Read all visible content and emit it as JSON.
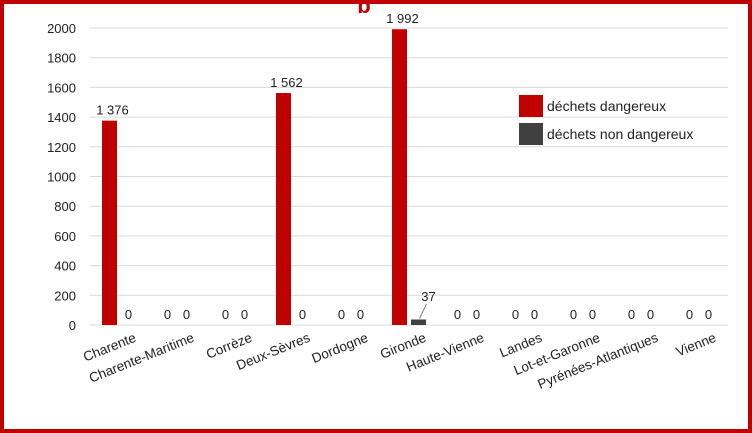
{
  "title_fragment": "p",
  "chart_data": {
    "type": "bar",
    "categories": [
      "Charente",
      "Charente-Maritime",
      "Corrèze",
      "Deux-Sèvres",
      "Dordogne",
      "Gironde",
      "Haute-Vienne",
      "Landes",
      "Lot-et-Garonne",
      "Pyrénées-Atlantiques",
      "Vienne"
    ],
    "series": [
      {
        "name": "déchets dangereux",
        "color": "#c00000",
        "values": [
          1376,
          0,
          0,
          1562,
          0,
          1992,
          0,
          0,
          0,
          0,
          0
        ],
        "labels": [
          "1 376",
          "0",
          "0",
          "1 562",
          "0",
          "1 992",
          "0",
          "0",
          "0",
          "0",
          "0"
        ]
      },
      {
        "name": "déchets non dangereux",
        "color": "#404040",
        "values": [
          0,
          0,
          0,
          0,
          0,
          37,
          0,
          0,
          0,
          0,
          0
        ],
        "labels": [
          "0",
          "0",
          "0",
          "0",
          "0",
          "37",
          "0",
          "0",
          "0",
          "0",
          "0"
        ]
      }
    ],
    "yticks": [
      "0",
      "200",
      "400",
      "600",
      "800",
      "1000",
      "1200",
      "1400",
      "1600",
      "1800",
      "2000"
    ],
    "ylim": [
      0,
      2000
    ],
    "grid": true,
    "legend_position": "top-right"
  }
}
